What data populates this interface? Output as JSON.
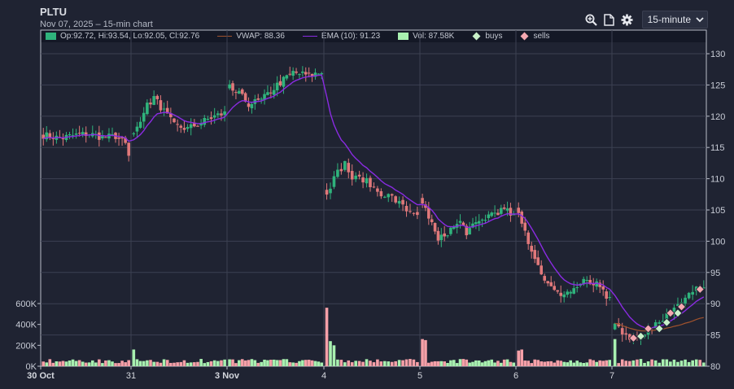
{
  "header": {
    "title": "PLTU",
    "subtitle": "Nov 07, 2025 – 15-min chart"
  },
  "toolbar": {
    "icons": [
      "zoom-in-icon",
      "document-icon",
      "gear-icon"
    ],
    "interval": "15-minute"
  },
  "legend": {
    "ohlc": "Op:92.72, Hi:93.54, Lo:92.05, Cl:92.76",
    "vwap": "VWAP: 88.36",
    "ema": "EMA (10): 91.23",
    "vol": "Vol: 87.58K",
    "buys": "buys",
    "sells": "sells"
  },
  "colors": {
    "up": "#2fb37c",
    "down": "#e0787a",
    "ema": "#8a2be2",
    "vwap": "#a0522d",
    "buys": "#c8f0c8",
    "sells": "#f4a8b0",
    "vol_up": "#a8f0b0",
    "vol_down": "#f6a0a8"
  },
  "chart_data": {
    "type": "candlestick",
    "price_ticks": [
      "130",
      "125",
      "120",
      "115",
      "110",
      "105",
      "100",
      "95",
      "90",
      "85",
      "80"
    ],
    "price_range": [
      80,
      131
    ],
    "volume_ticks": [
      "600K",
      "400K",
      "200K",
      "0K"
    ],
    "volume_range": [
      0,
      600000
    ],
    "x_labels": [
      "30 Oct",
      "31",
      "3 Nov",
      "4",
      "5",
      "6",
      "7"
    ],
    "sessions": [
      {
        "label": "30 Oct",
        "points": [
          [
            0,
            117
          ],
          [
            5,
            116.5
          ],
          [
            10,
            117
          ],
          [
            14,
            117.2
          ],
          [
            18,
            116.6
          ],
          [
            22,
            116.8
          ],
          [
            25,
            115.5
          ],
          [
            26,
            113.5
          ]
        ]
      },
      {
        "label": "31",
        "points": [
          [
            0,
            117
          ],
          [
            3,
            121
          ],
          [
            6,
            123
          ],
          [
            8,
            121.5
          ],
          [
            12,
            118.5
          ],
          [
            16,
            118
          ],
          [
            20,
            119
          ],
          [
            24,
            120
          ],
          [
            27,
            120.5
          ]
        ]
      },
      {
        "label": "3 Nov",
        "points": [
          [
            0,
            124.5
          ],
          [
            3,
            123.5
          ],
          [
            6,
            122
          ],
          [
            10,
            122.5
          ],
          [
            15,
            125
          ],
          [
            20,
            127
          ],
          [
            25,
            126.5
          ],
          [
            29,
            127
          ]
        ]
      },
      {
        "label": "4",
        "points": [
          [
            0,
            108
          ],
          [
            3,
            111
          ],
          [
            5,
            112.5
          ],
          [
            7,
            110
          ],
          [
            10,
            110
          ],
          [
            14,
            108
          ],
          [
            18,
            107
          ],
          [
            22,
            105
          ],
          [
            25,
            104.5
          ]
        ]
      },
      {
        "label": "5",
        "points": [
          [
            0,
            106
          ],
          [
            2,
            104
          ],
          [
            5,
            100
          ],
          [
            8,
            101.5
          ],
          [
            12,
            103
          ],
          [
            14,
            101.5
          ],
          [
            18,
            103
          ],
          [
            22,
            104.5
          ],
          [
            26,
            105
          ],
          [
            29,
            104
          ]
        ]
      },
      {
        "label": "6",
        "points": [
          [
            0,
            105
          ],
          [
            3,
            100
          ],
          [
            6,
            96
          ],
          [
            9,
            93
          ],
          [
            12,
            91.5
          ],
          [
            16,
            92
          ],
          [
            20,
            93.5
          ],
          [
            24,
            93
          ],
          [
            28,
            90.5
          ]
        ]
      },
      {
        "label": "7",
        "points": [
          [
            0,
            87
          ],
          [
            3,
            85
          ],
          [
            6,
            84.5
          ],
          [
            9,
            86
          ],
          [
            12,
            87.5
          ],
          [
            15,
            88.5
          ],
          [
            18,
            90
          ],
          [
            21,
            92
          ],
          [
            24,
            92.76
          ]
        ]
      }
    ],
    "volume_spikes_k": [
      {
        "session": "4",
        "bar": 0,
        "value": 560
      },
      {
        "session": "4",
        "bar": 1,
        "value": 240
      },
      {
        "session": "4",
        "bar": 2,
        "value": 200
      },
      {
        "session": "5",
        "bar": 0,
        "value": 260
      },
      {
        "session": "5",
        "bar": 1,
        "value": 250
      },
      {
        "session": "7",
        "bar": 0,
        "value": 260
      },
      {
        "session": "31",
        "bar": 0,
        "value": 160
      },
      {
        "session": "6",
        "bar": 0,
        "value": 150
      },
      {
        "session": "6",
        "bar": 1,
        "value": 160
      }
    ],
    "buy_markers": [
      [
        7,
        7,
        84.8
      ],
      [
        7,
        12,
        86
      ],
      [
        7,
        14,
        87
      ],
      [
        7,
        17,
        88.5
      ]
    ],
    "sell_markers": [
      [
        7,
        5,
        84.5
      ],
      [
        7,
        9,
        86
      ],
      [
        7,
        15,
        88.5
      ],
      [
        7,
        18,
        89.5
      ],
      [
        7,
        23,
        92.3
      ]
    ]
  }
}
